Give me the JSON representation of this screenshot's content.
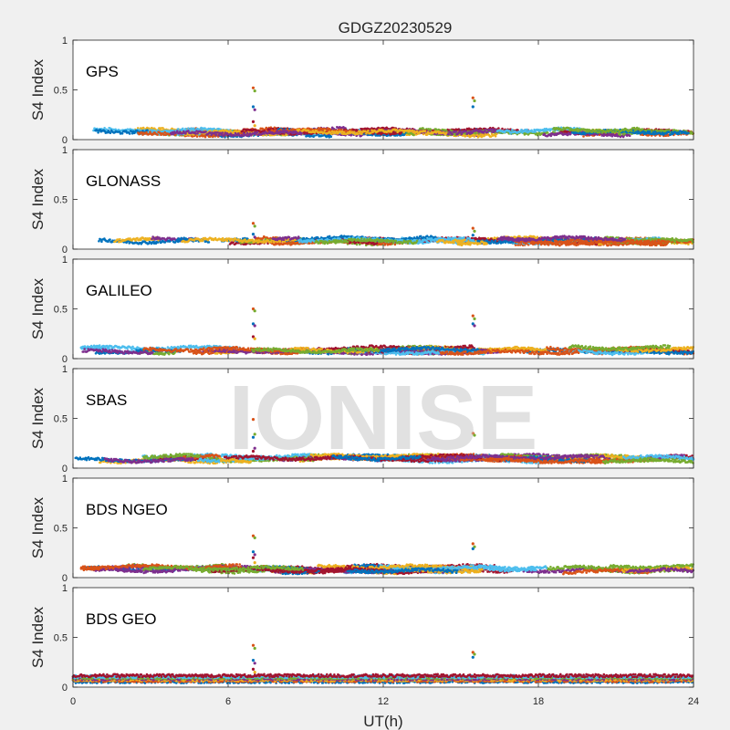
{
  "figure": {
    "title": "GDGZ20230529",
    "xlabel": "UT(h)",
    "watermark": "IONISE",
    "background": "#f0f0f0",
    "axes_background": "#ffffff"
  },
  "chart_data": {
    "type": "scatter",
    "xlim": [
      0,
      24
    ],
    "xticks": [
      0,
      6,
      12,
      18,
      24
    ],
    "ylim": [
      0,
      1
    ],
    "yticks": [
      0,
      0.5,
      1
    ],
    "ylabel": "S4 Index",
    "grid": false,
    "palette": [
      "#0072BD",
      "#D95319",
      "#EDB120",
      "#7E2F8E",
      "#77AC30",
      "#4DBEEE",
      "#A2142F"
    ],
    "panels": [
      {
        "label": "GPS",
        "baseline": 0.07,
        "note": "dense scatter of many satellites around 0.05-0.12",
        "spikes": [
          {
            "x": 7.0,
            "values": [
              0.52,
              0.49,
              0.33,
              0.3,
              0.18,
              0.14
            ]
          },
          {
            "x": 15.5,
            "values": [
              0.42,
              0.39,
              0.33
            ]
          }
        ]
      },
      {
        "label": "GLONASS",
        "baseline": 0.08,
        "note": "dense scatter of many satellites around 0.05-0.17",
        "spikes": [
          {
            "x": 7.0,
            "values": [
              0.26,
              0.23,
              0.15,
              0.12
            ]
          },
          {
            "x": 15.5,
            "values": [
              0.21,
              0.18,
              0.14
            ]
          }
        ]
      },
      {
        "label": "GALILEO",
        "baseline": 0.08,
        "note": "dense scatter of many satellites around 0.05-0.15",
        "spikes": [
          {
            "x": 7.0,
            "values": [
              0.5,
              0.48,
              0.35,
              0.33,
              0.22,
              0.2
            ]
          },
          {
            "x": 15.5,
            "values": [
              0.43,
              0.4,
              0.35,
              0.33
            ]
          }
        ]
      },
      {
        "label": "SBAS",
        "baseline": 0.09,
        "note": "dense scatter of many satellites around 0.06-0.17",
        "spikes": [
          {
            "x": 7.0,
            "values": [
              0.49,
              0.34,
              0.31,
              0.2,
              0.17
            ]
          },
          {
            "x": 15.5,
            "values": [
              0.35,
              0.33
            ]
          }
        ]
      },
      {
        "label": "BDS NGEO",
        "baseline": 0.08,
        "note": "dense scatter of many satellites around 0.05-0.13",
        "spikes": [
          {
            "x": 7.0,
            "values": [
              0.42,
              0.4,
              0.26,
              0.23,
              0.2,
              0.15
            ]
          },
          {
            "x": 15.5,
            "values": [
              0.34,
              0.31,
              0.29
            ]
          }
        ]
      },
      {
        "label": "BDS GEO",
        "baseline": 0.09,
        "note": "flat bands of geostationary satellites around 0.05-0.12",
        "spikes": [
          {
            "x": 7.0,
            "values": [
              0.42,
              0.39,
              0.27,
              0.24,
              0.18,
              0.15
            ]
          },
          {
            "x": 15.5,
            "values": [
              0.35,
              0.33,
              0.3
            ]
          }
        ]
      }
    ]
  }
}
